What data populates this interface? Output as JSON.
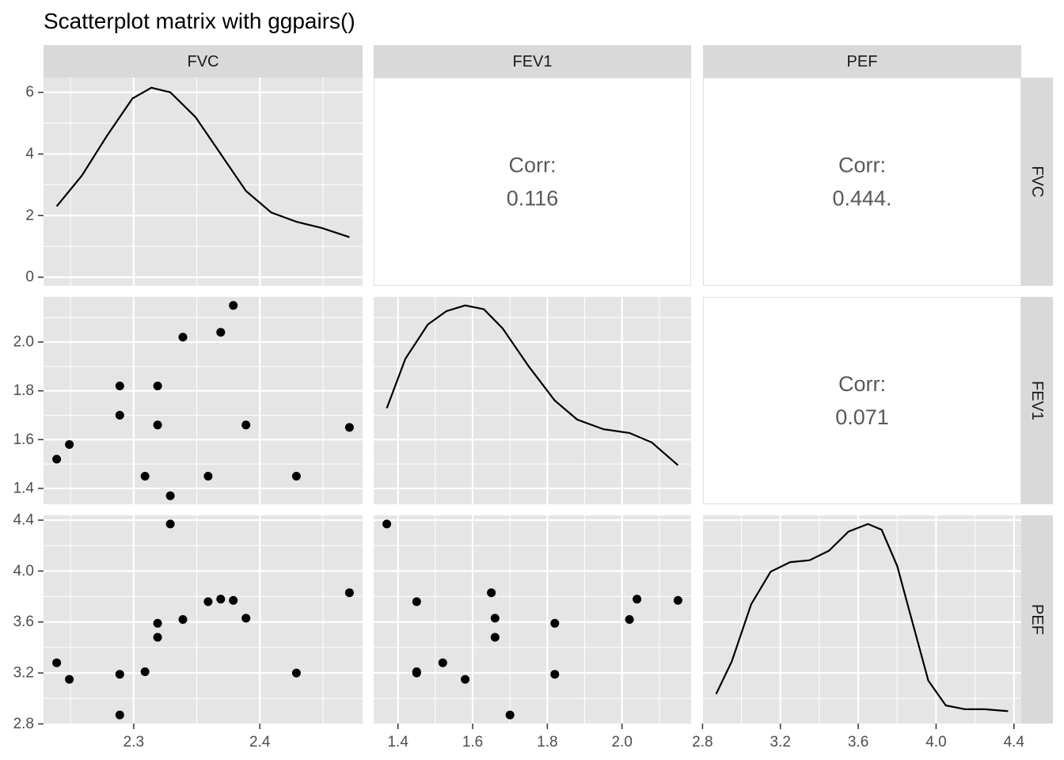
{
  "chart_data": {
    "type": "scatter",
    "title": "Scatterplot matrix with ggpairs()",
    "variables": [
      "FVC",
      "FEV1",
      "PEF"
    ],
    "ranges": {
      "FVC": [
        2.239,
        2.471
      ],
      "FEV1": [
        1.37,
        2.15
      ],
      "PEF": [
        2.87,
        4.37
      ]
    },
    "x_ticks": {
      "FVC": [
        "2.3",
        "2.4"
      ],
      "FEV1": [
        "1.4",
        "1.6",
        "1.8",
        "2.0"
      ],
      "PEF": [
        "2.8",
        "3.2",
        "3.6",
        "4.0",
        "4.4"
      ]
    },
    "y_ticks": {
      "density_FVC": [
        "0",
        "2",
        "4",
        "6"
      ],
      "FEV1": [
        "1.4",
        "1.6",
        "1.8",
        "2.0"
      ],
      "PEF": [
        "2.8",
        "3.2",
        "3.6",
        "4.0",
        "4.4"
      ]
    },
    "observations": [
      {
        "FVC": 2.239,
        "FEV1": 1.52,
        "PEF": 3.28
      },
      {
        "FVC": 2.249,
        "FEV1": 1.58,
        "PEF": 3.15
      },
      {
        "FVC": 2.289,
        "FEV1": 1.82,
        "PEF": 3.19
      },
      {
        "FVC": 2.289,
        "FEV1": 1.7,
        "PEF": 2.87
      },
      {
        "FVC": 2.309,
        "FEV1": 1.45,
        "PEF": 3.21
      },
      {
        "FVC": 2.319,
        "FEV1": 1.82,
        "PEF": 3.59
      },
      {
        "FVC": 2.319,
        "FEV1": 1.66,
        "PEF": 3.48
      },
      {
        "FVC": 2.329,
        "FEV1": 1.37,
        "PEF": 4.37
      },
      {
        "FVC": 2.339,
        "FEV1": 2.02,
        "PEF": 3.62
      },
      {
        "FVC": 2.359,
        "FEV1": 1.45,
        "PEF": 3.76
      },
      {
        "FVC": 2.369,
        "FEV1": 2.04,
        "PEF": 3.78
      },
      {
        "FVC": 2.379,
        "FEV1": 2.15,
        "PEF": 3.77
      },
      {
        "FVC": 2.389,
        "FEV1": 1.66,
        "PEF": 3.63
      },
      {
        "FVC": 2.429,
        "FEV1": 1.45,
        "PEF": 3.2
      },
      {
        "FVC": 2.471,
        "FEV1": 1.65,
        "PEF": 3.83
      }
    ],
    "densities": {
      "FVC": {
        "ylim": [
          0,
          6.2
        ],
        "points": [
          [
            2.239,
            2.3
          ],
          [
            2.259,
            3.3
          ],
          [
            2.279,
            4.6
          ],
          [
            2.299,
            5.8
          ],
          [
            2.314,
            6.15
          ],
          [
            2.329,
            6.0
          ],
          [
            2.349,
            5.2
          ],
          [
            2.369,
            4.0
          ],
          [
            2.389,
            2.8
          ],
          [
            2.409,
            2.1
          ],
          [
            2.429,
            1.8
          ],
          [
            2.449,
            1.6
          ],
          [
            2.471,
            1.3
          ]
        ]
      },
      "FEV1": {
        "points": [
          [
            1.37,
            0.46
          ],
          [
            1.42,
            0.72
          ],
          [
            1.48,
            0.9
          ],
          [
            1.53,
            0.97
          ],
          [
            1.58,
            1.0
          ],
          [
            1.63,
            0.98
          ],
          [
            1.68,
            0.88
          ],
          [
            1.75,
            0.68
          ],
          [
            1.82,
            0.5
          ],
          [
            1.88,
            0.4
          ],
          [
            1.95,
            0.35
          ],
          [
            2.02,
            0.33
          ],
          [
            2.08,
            0.28
          ],
          [
            2.15,
            0.16
          ]
        ]
      },
      "PEF": {
        "points": [
          [
            2.87,
            0.11
          ],
          [
            2.95,
            0.28
          ],
          [
            3.05,
            0.58
          ],
          [
            3.15,
            0.75
          ],
          [
            3.25,
            0.8
          ],
          [
            3.35,
            0.81
          ],
          [
            3.45,
            0.86
          ],
          [
            3.55,
            0.96
          ],
          [
            3.65,
            1.0
          ],
          [
            3.72,
            0.97
          ],
          [
            3.8,
            0.78
          ],
          [
            3.88,
            0.48
          ],
          [
            3.96,
            0.18
          ],
          [
            4.05,
            0.05
          ],
          [
            4.15,
            0.03
          ],
          [
            4.25,
            0.03
          ],
          [
            4.37,
            0.02
          ]
        ]
      }
    },
    "correlations": [
      {
        "row": "FVC",
        "col": "FEV1",
        "label": "Corr:",
        "value": "0.116"
      },
      {
        "row": "FVC",
        "col": "PEF",
        "label": "Corr:",
        "value": "0.444."
      },
      {
        "row": "FEV1",
        "col": "PEF",
        "label": "Corr:",
        "value": "0.071"
      }
    ],
    "colors": {
      "panel_bg": "#e5e5e5",
      "strip_bg": "#d9d9d9",
      "grid": "#ffffff",
      "point": "#000000",
      "corr_text": "#595959"
    }
  }
}
